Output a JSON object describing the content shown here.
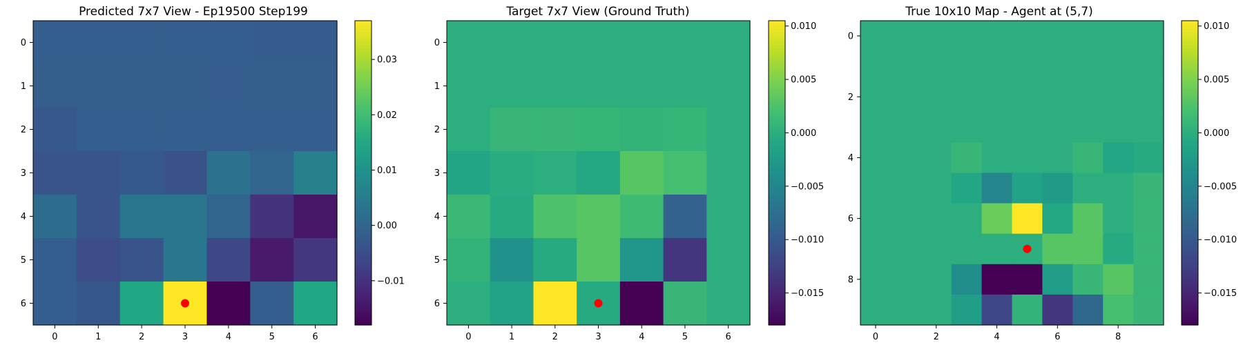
{
  "chart_data": [
    {
      "type": "heatmap",
      "title": "Predicted 7x7 View - Ep19500 Step199",
      "colormap": "viridis",
      "vmin": -0.018,
      "vmax": 0.037,
      "x_ticks": [
        "0",
        "1",
        "2",
        "3",
        "4",
        "5",
        "6"
      ],
      "y_ticks": [
        "0",
        "1",
        "2",
        "3",
        "4",
        "5",
        "6"
      ],
      "colorbar_ticks": [
        {
          "value": -0.01,
          "label": "−0.01"
        },
        {
          "value": 0.0,
          "label": "0.00"
        },
        {
          "value": 0.01,
          "label": "0.01"
        },
        {
          "value": 0.02,
          "label": "0.02"
        },
        {
          "value": 0.03,
          "label": "0.03"
        }
      ],
      "marker": {
        "x": 3,
        "y": 6,
        "color": "#ff0000"
      },
      "values": [
        [
          -0.0015,
          -0.0015,
          -0.0015,
          -0.0015,
          -0.0015,
          -0.0017,
          -0.0017
        ],
        [
          -0.0013,
          -0.0013,
          -0.0013,
          -0.0013,
          -0.0018,
          -0.0013,
          -0.0013
        ],
        [
          -0.0028,
          -0.0015,
          -0.0015,
          -0.0015,
          -0.0015,
          -0.0015,
          -0.0015
        ],
        [
          -0.0035,
          -0.0035,
          -0.0025,
          -0.004,
          0.0025,
          0.0,
          0.006
        ],
        [
          0.0015,
          -0.0035,
          0.0035,
          0.0035,
          0.0,
          -0.01,
          -0.0145
        ],
        [
          -0.0015,
          -0.005,
          -0.0035,
          0.0035,
          -0.006,
          -0.014,
          -0.009
        ],
        [
          -0.0015,
          -0.003,
          0.015,
          0.037,
          -0.018,
          -0.0015,
          0.015
        ]
      ]
    },
    {
      "type": "heatmap",
      "title": "Target 7x7 View (Ground Truth)",
      "colormap": "viridis",
      "vmin": -0.018,
      "vmax": 0.0105,
      "x_ticks": [
        "0",
        "1",
        "2",
        "3",
        "4",
        "5",
        "6"
      ],
      "y_ticks": [
        "0",
        "1",
        "2",
        "3",
        "4",
        "5",
        "6"
      ],
      "colorbar_ticks": [
        {
          "value": -0.015,
          "label": "−0.015"
        },
        {
          "value": -0.01,
          "label": "−0.010"
        },
        {
          "value": -0.005,
          "label": "−0.005"
        },
        {
          "value": 0.0,
          "label": "0.000"
        },
        {
          "value": 0.005,
          "label": "0.005"
        },
        {
          "value": 0.01,
          "label": "0.010"
        }
      ],
      "marker": {
        "x": 3,
        "y": 6,
        "color": "#ff0000"
      },
      "values": [
        [
          0.0,
          0.0,
          0.0,
          0.0,
          0.0,
          0.0,
          0.0
        ],
        [
          0.0,
          0.0,
          0.0,
          0.0,
          0.0,
          0.0,
          0.0
        ],
        [
          0.0,
          0.001,
          0.001,
          0.0008,
          0.0006,
          0.0008,
          0.0
        ],
        [
          -0.0012,
          -0.0003,
          0.0,
          -0.0008,
          0.003,
          0.002,
          0.0
        ],
        [
          0.0012,
          -0.0005,
          0.0025,
          0.003,
          0.0015,
          -0.009,
          0.0
        ],
        [
          0.0005,
          -0.0035,
          -0.0005,
          0.003,
          -0.003,
          -0.0135,
          0.0
        ],
        [
          0.0,
          -0.0015,
          0.0105,
          -0.0005,
          -0.018,
          0.001,
          0.0
        ]
      ]
    },
    {
      "type": "heatmap",
      "title": "True 10x10 Map - Agent at (5,7)",
      "colormap": "viridis",
      "vmin": -0.018,
      "vmax": 0.0105,
      "x_ticks": [
        "0",
        "2",
        "4",
        "6",
        "8"
      ],
      "x_tick_values": [
        0,
        2,
        4,
        6,
        8
      ],
      "y_ticks": [
        "0",
        "2",
        "4",
        "6",
        "8"
      ],
      "y_tick_values": [
        0,
        2,
        4,
        6,
        8
      ],
      "colorbar_ticks": [
        {
          "value": -0.015,
          "label": "−0.015"
        },
        {
          "value": -0.01,
          "label": "−0.010"
        },
        {
          "value": -0.005,
          "label": "−0.005"
        },
        {
          "value": 0.0,
          "label": "0.000"
        },
        {
          "value": 0.005,
          "label": "0.005"
        },
        {
          "value": 0.01,
          "label": "0.010"
        }
      ],
      "marker": {
        "x": 5,
        "y": 7,
        "color": "#ff0000"
      },
      "values": [
        [
          0,
          0,
          0,
          0,
          0,
          0,
          0,
          0,
          0,
          0
        ],
        [
          0,
          0,
          0,
          0,
          0,
          0,
          0,
          0,
          0,
          0
        ],
        [
          0,
          0,
          0,
          0,
          0,
          0,
          0,
          0,
          0,
          0
        ],
        [
          0,
          0,
          0,
          0,
          0,
          0,
          0,
          0,
          0,
          0
        ],
        [
          0,
          0,
          0,
          0.001,
          0.0,
          0.0,
          0.0,
          0.001,
          -0.001,
          -0.0005
        ],
        [
          0,
          0,
          0,
          -0.001,
          -0.005,
          -0.0015,
          -0.0025,
          0.0,
          0.0,
          0.001
        ],
        [
          0,
          0,
          0,
          0.0,
          0.004,
          0.0105,
          -0.0008,
          0.003,
          0.0,
          0.001
        ],
        [
          0,
          0,
          0,
          0.0,
          0.0,
          0.0,
          0.003,
          0.003,
          -0.0005,
          0.001
        ],
        [
          0,
          0,
          0,
          -0.004,
          -0.018,
          -0.018,
          -0.002,
          0.001,
          0.003,
          0.001
        ],
        [
          0,
          0,
          0,
          -0.002,
          -0.012,
          0.0005,
          -0.0135,
          -0.0085,
          0.002,
          0.001
        ]
      ]
    }
  ]
}
